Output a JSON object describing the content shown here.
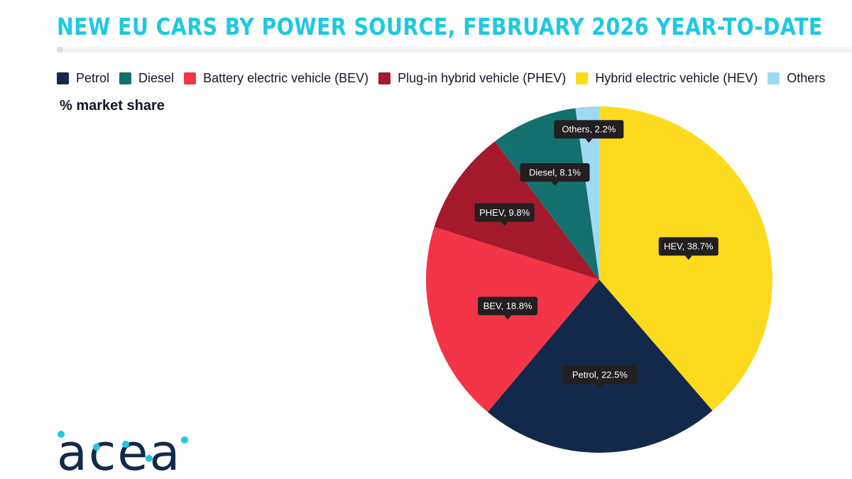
{
  "title": "NEW EU CARS BY POWER SOURCE, FEBRUARY 2026 YEAR-TO-DATE",
  "subtitle": "% market share",
  "legend": [
    {
      "label": "Petrol",
      "color": "#13294b"
    },
    {
      "label": "Diesel",
      "color": "#14706e"
    },
    {
      "label": "Battery electric vehicle (BEV)",
      "color": "#f43447"
    },
    {
      "label": "Plug-in hybrid vehicle (PHEV)",
      "color": "#a5192c"
    },
    {
      "label": "Hybrid electric vehicle (HEV)",
      "color": "#fcdb1e"
    },
    {
      "label": "Others",
      "color": "#9ed9f2"
    }
  ],
  "chart_data": {
    "type": "pie",
    "title": "NEW EU CARS BY POWER SOURCE, FEBRUARY 2026 YEAR-TO-DATE",
    "unit": "% market share",
    "slices": [
      {
        "name": "HEV",
        "value": 38.7,
        "label": "HEV, 38.7%",
        "color": "#fcdb1e"
      },
      {
        "name": "Petrol",
        "value": 22.5,
        "label": "Petrol, 22.5%",
        "color": "#13294b"
      },
      {
        "name": "BEV",
        "value": 18.8,
        "label": "BEV, 18.8%",
        "color": "#f43447"
      },
      {
        "name": "PHEV",
        "value": 9.8,
        "label": "PHEV, 9.8%",
        "color": "#a5192c"
      },
      {
        "name": "Diesel",
        "value": 8.1,
        "label": "Diesel, 8.1%",
        "color": "#14706e"
      },
      {
        "name": "Others",
        "value": 2.2,
        "label": "Others, 2.2%",
        "color": "#9ed9f2"
      }
    ],
    "legend_position": "top"
  },
  "logo": {
    "text": "acea",
    "color": "#13294b",
    "accent": "#1fc8e0"
  }
}
